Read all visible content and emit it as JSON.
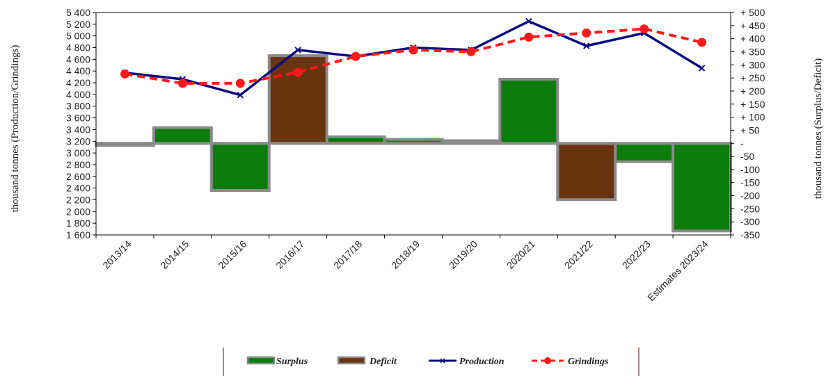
{
  "chart_data": {
    "type": "bar",
    "categories": [
      "2013/14",
      "2014/15",
      "2015/16",
      "2016/17",
      "2017/18",
      "2018/19",
      "2019/20",
      "2020/21",
      "2021/22",
      "2022/23",
      "Estimates 2023/24"
    ],
    "series": [
      {
        "name": "Surplus",
        "kind": "bar",
        "axis": "right",
        "color": "#0a7d0a",
        "values": [
          -8,
          60,
          -180,
          null,
          25,
          15,
          10,
          245,
          null,
          -70,
          -335
        ]
      },
      {
        "name": "Deficit",
        "kind": "bar",
        "axis": "right",
        "color": "#6b3410",
        "values": [
          null,
          null,
          null,
          335,
          null,
          null,
          null,
          null,
          -215,
          null,
          null
        ]
      },
      {
        "name": "Production",
        "kind": "line",
        "axis": "left",
        "color": "#0a0a80",
        "marker": "x",
        "values": [
          4370,
          4260,
          3990,
          4760,
          4650,
          4800,
          4760,
          5250,
          4830,
          5050,
          4450
        ]
      },
      {
        "name": "Grindings",
        "kind": "line",
        "axis": "left",
        "color": "#ff1a1a",
        "marker": "circle",
        "dashed": true,
        "values": [
          4350,
          4190,
          4190,
          4380,
          4650,
          4760,
          4730,
          4980,
          5050,
          5120,
          4890
        ]
      }
    ],
    "left_axis": {
      "label": "thousand tonnes (Production/Grindings)",
      "ylim": [
        1600,
        5400
      ],
      "ticks": [
        "1 600",
        "1 800",
        "2 000",
        "2 200",
        "2 400",
        "2 600",
        "2 800",
        "3 000",
        "3 200",
        "3 400",
        "3 600",
        "3 800",
        "4 000",
        "4 200",
        "4 400",
        "4 600",
        "4 800",
        "5 000",
        "5 200",
        "5 400"
      ]
    },
    "right_axis": {
      "label": "thousand tonnes (Surplus/Deficit)",
      "ylim": [
        -350,
        500
      ],
      "ticks": [
        "-350",
        "-300",
        "-250",
        "-200",
        "-150",
        "-100",
        "-50",
        "-",
        "+ 50",
        "+ 100",
        "+ 150",
        "+ 200",
        "+ 250",
        "+ 300",
        "+ 350",
        "+ 400",
        "+ 450",
        "+ 500"
      ]
    },
    "legend": {
      "placement": "bottom",
      "items": [
        "Surplus",
        "Deficit",
        "Production",
        "Grindings"
      ]
    },
    "grid": false
  }
}
